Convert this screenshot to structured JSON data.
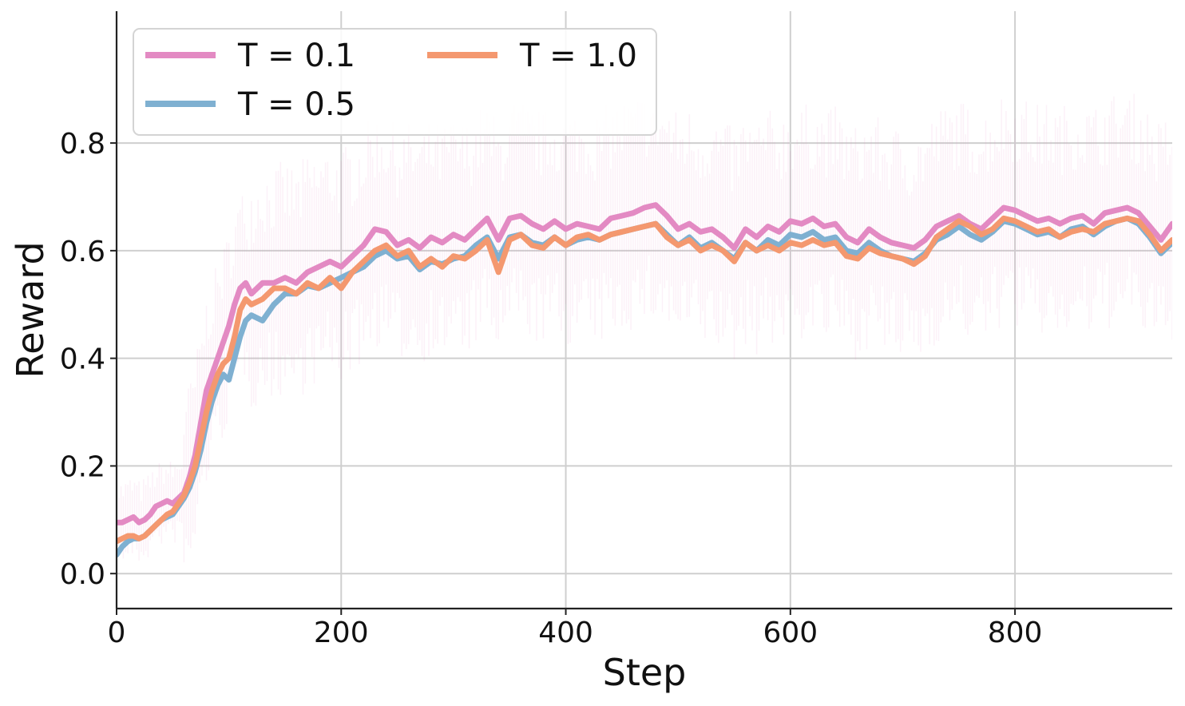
{
  "chart_data": {
    "type": "line",
    "title": "",
    "xlabel": "Step",
    "ylabel": "Reward",
    "xlim": [
      0,
      940
    ],
    "ylim": [
      -0.065,
      1.045
    ],
    "x_ticks": [
      0,
      200,
      400,
      600,
      800
    ],
    "y_ticks": [
      0.0,
      0.2,
      0.4,
      0.6,
      0.8
    ],
    "x_tick_labels": [
      "0",
      "200",
      "400",
      "600",
      "800"
    ],
    "y_tick_labels": [
      "0.0",
      "0.2",
      "0.4",
      "0.6",
      "0.8"
    ],
    "grid": true,
    "legend": {
      "position": "top-left",
      "columns": 2
    },
    "series": [
      {
        "name": "T = 0.1",
        "color": "#e38ac3",
        "x": [
          0,
          5,
          10,
          15,
          20,
          25,
          30,
          35,
          40,
          45,
          50,
          55,
          60,
          65,
          70,
          75,
          80,
          85,
          90,
          95,
          100,
          105,
          110,
          115,
          120,
          130,
          140,
          150,
          160,
          170,
          180,
          190,
          200,
          210,
          220,
          230,
          240,
          250,
          260,
          270,
          280,
          290,
          300,
          310,
          320,
          330,
          340,
          350,
          360,
          370,
          380,
          390,
          400,
          410,
          420,
          430,
          440,
          450,
          460,
          470,
          480,
          490,
          500,
          510,
          520,
          530,
          540,
          550,
          560,
          570,
          580,
          590,
          600,
          610,
          620,
          630,
          640,
          650,
          660,
          670,
          680,
          690,
          700,
          710,
          720,
          730,
          740,
          750,
          760,
          770,
          780,
          790,
          800,
          810,
          820,
          830,
          840,
          850,
          860,
          870,
          880,
          890,
          900,
          910,
          920,
          930,
          940
        ],
        "values": [
          0.095,
          0.095,
          0.1,
          0.105,
          0.095,
          0.1,
          0.11,
          0.125,
          0.13,
          0.135,
          0.13,
          0.14,
          0.15,
          0.18,
          0.22,
          0.28,
          0.34,
          0.37,
          0.4,
          0.43,
          0.46,
          0.5,
          0.53,
          0.54,
          0.52,
          0.54,
          0.54,
          0.55,
          0.54,
          0.56,
          0.57,
          0.58,
          0.57,
          0.59,
          0.61,
          0.64,
          0.635,
          0.61,
          0.62,
          0.605,
          0.625,
          0.615,
          0.63,
          0.62,
          0.64,
          0.66,
          0.62,
          0.66,
          0.665,
          0.65,
          0.64,
          0.655,
          0.64,
          0.65,
          0.645,
          0.64,
          0.66,
          0.665,
          0.67,
          0.68,
          0.685,
          0.665,
          0.64,
          0.65,
          0.635,
          0.64,
          0.625,
          0.605,
          0.64,
          0.625,
          0.645,
          0.635,
          0.655,
          0.65,
          0.66,
          0.645,
          0.65,
          0.625,
          0.615,
          0.64,
          0.625,
          0.615,
          0.61,
          0.605,
          0.62,
          0.645,
          0.655,
          0.665,
          0.65,
          0.64,
          0.66,
          0.68,
          0.675,
          0.665,
          0.655,
          0.66,
          0.65,
          0.66,
          0.665,
          0.65,
          0.67,
          0.675,
          0.68,
          0.67,
          0.645,
          0.62,
          0.65
        ]
      },
      {
        "name": "T = 0.5",
        "color": "#7fb0d1",
        "x": [
          0,
          5,
          10,
          15,
          20,
          25,
          30,
          35,
          40,
          45,
          50,
          55,
          60,
          65,
          70,
          75,
          80,
          85,
          90,
          95,
          100,
          105,
          110,
          115,
          120,
          130,
          140,
          150,
          160,
          170,
          180,
          190,
          200,
          210,
          220,
          230,
          240,
          250,
          260,
          270,
          280,
          290,
          300,
          310,
          320,
          330,
          340,
          350,
          360,
          370,
          380,
          390,
          400,
          410,
          420,
          430,
          440,
          450,
          460,
          470,
          480,
          490,
          500,
          510,
          520,
          530,
          540,
          550,
          560,
          570,
          580,
          590,
          600,
          610,
          620,
          630,
          640,
          650,
          660,
          670,
          680,
          690,
          700,
          710,
          720,
          730,
          740,
          750,
          760,
          770,
          780,
          790,
          800,
          810,
          820,
          830,
          840,
          850,
          860,
          870,
          880,
          890,
          900,
          910,
          920,
          930,
          940
        ],
        "values": [
          0.035,
          0.05,
          0.06,
          0.065,
          0.065,
          0.07,
          0.08,
          0.09,
          0.1,
          0.105,
          0.11,
          0.125,
          0.14,
          0.16,
          0.19,
          0.23,
          0.28,
          0.32,
          0.35,
          0.37,
          0.36,
          0.4,
          0.44,
          0.47,
          0.48,
          0.47,
          0.5,
          0.52,
          0.52,
          0.535,
          0.53,
          0.54,
          0.55,
          0.56,
          0.57,
          0.59,
          0.6,
          0.585,
          0.59,
          0.565,
          0.58,
          0.575,
          0.585,
          0.59,
          0.61,
          0.625,
          0.585,
          0.625,
          0.63,
          0.615,
          0.61,
          0.625,
          0.61,
          0.62,
          0.625,
          0.62,
          0.63,
          0.635,
          0.64,
          0.645,
          0.65,
          0.63,
          0.61,
          0.625,
          0.605,
          0.615,
          0.6,
          0.585,
          0.615,
          0.6,
          0.62,
          0.61,
          0.63,
          0.625,
          0.635,
          0.62,
          0.625,
          0.6,
          0.595,
          0.615,
          0.6,
          0.59,
          0.585,
          0.58,
          0.595,
          0.62,
          0.63,
          0.645,
          0.63,
          0.62,
          0.635,
          0.655,
          0.65,
          0.64,
          0.63,
          0.635,
          0.625,
          0.64,
          0.645,
          0.63,
          0.645,
          0.655,
          0.66,
          0.65,
          0.625,
          0.595,
          0.615
        ]
      },
      {
        "name": "T = 1.0",
        "color": "#f4986f",
        "x": [
          0,
          5,
          10,
          15,
          20,
          25,
          30,
          35,
          40,
          45,
          50,
          55,
          60,
          65,
          70,
          75,
          80,
          85,
          90,
          95,
          100,
          105,
          110,
          115,
          120,
          130,
          140,
          150,
          160,
          170,
          180,
          190,
          200,
          210,
          220,
          230,
          240,
          250,
          260,
          270,
          280,
          290,
          300,
          310,
          320,
          330,
          340,
          350,
          360,
          370,
          380,
          390,
          400,
          410,
          420,
          430,
          440,
          450,
          460,
          470,
          480,
          490,
          500,
          510,
          520,
          530,
          540,
          550,
          560,
          570,
          580,
          590,
          600,
          610,
          620,
          630,
          640,
          650,
          660,
          670,
          680,
          690,
          700,
          710,
          720,
          730,
          740,
          750,
          760,
          770,
          780,
          790,
          800,
          810,
          820,
          830,
          840,
          850,
          860,
          870,
          880,
          890,
          900,
          910,
          920,
          930,
          940
        ],
        "values": [
          0.06,
          0.065,
          0.07,
          0.07,
          0.065,
          0.07,
          0.08,
          0.09,
          0.1,
          0.11,
          0.115,
          0.13,
          0.145,
          0.17,
          0.2,
          0.25,
          0.3,
          0.34,
          0.37,
          0.39,
          0.4,
          0.44,
          0.49,
          0.51,
          0.5,
          0.51,
          0.53,
          0.53,
          0.52,
          0.54,
          0.53,
          0.55,
          0.53,
          0.56,
          0.58,
          0.6,
          0.61,
          0.59,
          0.6,
          0.57,
          0.585,
          0.57,
          0.59,
          0.585,
          0.6,
          0.62,
          0.56,
          0.62,
          0.63,
          0.61,
          0.605,
          0.625,
          0.61,
          0.625,
          0.63,
          0.62,
          0.63,
          0.635,
          0.64,
          0.645,
          0.65,
          0.625,
          0.61,
          0.62,
          0.6,
          0.61,
          0.6,
          0.58,
          0.615,
          0.6,
          0.61,
          0.6,
          0.615,
          0.61,
          0.62,
          0.61,
          0.615,
          0.59,
          0.585,
          0.605,
          0.595,
          0.59,
          0.585,
          0.575,
          0.59,
          0.625,
          0.64,
          0.655,
          0.645,
          0.63,
          0.64,
          0.66,
          0.655,
          0.645,
          0.635,
          0.64,
          0.625,
          0.635,
          0.64,
          0.635,
          0.65,
          0.655,
          0.66,
          0.655,
          0.63,
          0.6,
          0.62
        ]
      }
    ]
  }
}
